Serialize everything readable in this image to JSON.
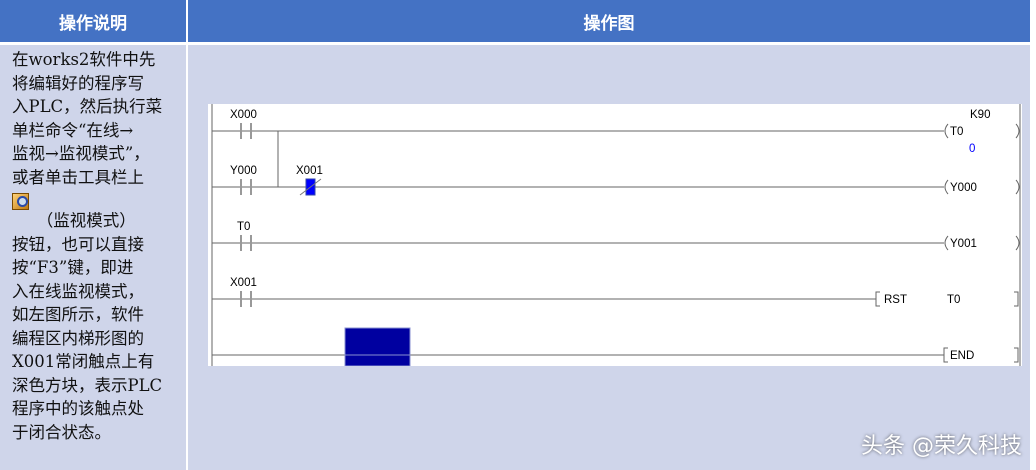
{
  "header": {
    "col1": "操作说明",
    "col2": "操作图"
  },
  "description": {
    "lines_before_icon": [
      "在works2软件中先",
      "将编辑好的程序写",
      "入PLC，然后执行菜",
      "单栏命令“在线→",
      "监视→监视模式”，",
      "或者单击工具栏上"
    ],
    "icon": "monitor-mode-icon",
    "lines_after_icon": [
      "　　（监视模式）",
      "按钮，也可以直接",
      "按“F3”键，即进",
      "入在线监视模式，",
      "如左图所示，软件",
      "编程区内梯形图的",
      "X001常闭触点上有",
      "深色方块，表示PLC",
      "程序中的该触点处",
      "于闭合状态。"
    ]
  },
  "ladder": {
    "contacts": [
      "X000",
      "Y000",
      "X001",
      "T0",
      "X001"
    ],
    "coils": [
      "T0",
      "Y000",
      "Y001"
    ],
    "timer_setting": "K90",
    "timer_value": "0",
    "rst_instruction": "RST",
    "rst_target": "T0",
    "end_instruction": "END"
  },
  "colors": {
    "header": "#4472c4",
    "body": "#cfd5ea",
    "monitor_block": "#0000a0",
    "active_contact": "#0000ff",
    "timer_value": "#0000ff"
  },
  "watermark": "头条 @荣久科技"
}
